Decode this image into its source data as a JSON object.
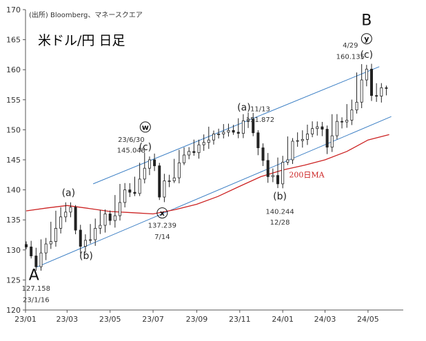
{
  "source_note": "(出所) Bloomberg、マネースクエア",
  "title": "米ドル/円 日足",
  "chart_data": {
    "type": "line",
    "title": "米ドル/円 日足",
    "ylim": [
      120,
      170
    ],
    "y_ticks": [
      "120",
      "125",
      "130",
      "135",
      "140",
      "145",
      "150",
      "155",
      "160",
      "165",
      "170"
    ],
    "x_ticks": [
      "23/01",
      "23/03",
      "23/05",
      "23/07",
      "23/09",
      "23/11",
      "24/01",
      "24/03",
      "24/05"
    ],
    "series": [
      {
        "name": "",
        "style": "candlestick",
        "values": [
          [
            "2023-01-02",
            130.5
          ],
          [
            "2023-01-09",
            129.0
          ],
          [
            "2023-01-16",
            127.2
          ],
          [
            "2023-01-23",
            129.5
          ],
          [
            "2023-01-30",
            131.0
          ],
          [
            "2023-02-06",
            131.4
          ],
          [
            "2023-02-13",
            133.6
          ],
          [
            "2023-02-20",
            135.5
          ],
          [
            "2023-02-27",
            136.3
          ],
          [
            "2023-03-06",
            137.1
          ],
          [
            "2023-03-13",
            133.3
          ],
          [
            "2023-03-20",
            130.6
          ],
          [
            "2023-03-27",
            131.6
          ],
          [
            "2023-04-03",
            131.7
          ],
          [
            "2023-04-10",
            133.6
          ],
          [
            "2023-04-17",
            134.1
          ],
          [
            "2023-04-24",
            136.0
          ],
          [
            "2023-05-01",
            134.9
          ],
          [
            "2023-05-08",
            135.7
          ],
          [
            "2023-05-15",
            137.9
          ],
          [
            "2023-05-22",
            140.0
          ],
          [
            "2023-05-29",
            139.6
          ],
          [
            "2023-06-05",
            139.4
          ],
          [
            "2023-06-12",
            141.8
          ],
          [
            "2023-06-19",
            143.6
          ],
          [
            "2023-06-26",
            145.0
          ],
          [
            "2023-07-03",
            144.0
          ],
          [
            "2023-07-10",
            138.8
          ],
          [
            "2023-07-17",
            141.5
          ],
          [
            "2023-07-24",
            141.5
          ],
          [
            "2023-07-31",
            142.0
          ],
          [
            "2023-08-07",
            144.5
          ],
          [
            "2023-08-14",
            145.8
          ],
          [
            "2023-08-21",
            146.4
          ],
          [
            "2023-08-28",
            146.2
          ],
          [
            "2023-09-04",
            147.5
          ],
          [
            "2023-09-11",
            147.9
          ],
          [
            "2023-09-18",
            148.3
          ],
          [
            "2023-09-25",
            149.3
          ],
          [
            "2023-10-02",
            149.3
          ],
          [
            "2023-10-09",
            149.6
          ],
          [
            "2023-10-16",
            149.9
          ],
          [
            "2023-10-23",
            149.6
          ],
          [
            "2023-10-30",
            149.4
          ],
          [
            "2023-11-06",
            151.5
          ],
          [
            "2023-11-13",
            151.8
          ],
          [
            "2023-11-20",
            149.5
          ],
          [
            "2023-11-27",
            147.0
          ],
          [
            "2023-12-04",
            144.9
          ],
          [
            "2023-12-11",
            142.2
          ],
          [
            "2023-12-18",
            142.4
          ],
          [
            "2023-12-25",
            141.0
          ],
          [
            "2024-01-01",
            144.6
          ],
          [
            "2024-01-08",
            145.0
          ],
          [
            "2024-01-15",
            148.1
          ],
          [
            "2024-01-22",
            148.2
          ],
          [
            "2024-01-29",
            148.4
          ],
          [
            "2024-02-05",
            149.3
          ],
          [
            "2024-02-12",
            150.2
          ],
          [
            "2024-02-19",
            150.5
          ],
          [
            "2024-02-26",
            150.1
          ],
          [
            "2024-03-04",
            147.1
          ],
          [
            "2024-03-11",
            149.0
          ],
          [
            "2024-03-18",
            151.4
          ],
          [
            "2024-03-25",
            151.3
          ],
          [
            "2024-04-01",
            151.6
          ],
          [
            "2024-04-08",
            153.3
          ],
          [
            "2024-04-15",
            154.6
          ],
          [
            "2024-04-22",
            158.3
          ],
          [
            "2024-04-29",
            160.1
          ],
          [
            "2024-05-06",
            155.7
          ],
          [
            "2024-05-13",
            155.6
          ],
          [
            "2024-05-20",
            157.0
          ],
          [
            "2024-05-27",
            156.9
          ]
        ]
      },
      {
        "name": "200日MA",
        "color": "#cc2222",
        "values": [
          [
            "2023-01-02",
            136.5
          ],
          [
            "2023-02-01",
            137.0
          ],
          [
            "2023-03-01",
            137.4
          ],
          [
            "2023-04-01",
            136.9
          ],
          [
            "2023-05-01",
            136.4
          ],
          [
            "2023-06-01",
            136.2
          ],
          [
            "2023-07-01",
            136.0
          ],
          [
            "2023-08-01",
            136.7
          ],
          [
            "2023-09-01",
            137.6
          ],
          [
            "2023-10-01",
            138.9
          ],
          [
            "2023-11-01",
            140.6
          ],
          [
            "2023-12-01",
            142.2
          ],
          [
            "2024-01-01",
            143.3
          ],
          [
            "2024-02-01",
            144.1
          ],
          [
            "2024-03-01",
            145.0
          ],
          [
            "2024-04-01",
            146.4
          ],
          [
            "2024-05-01",
            148.3
          ],
          [
            "2024-05-31",
            149.2
          ]
        ]
      }
    ],
    "trend_lines": [
      {
        "from": [
          "2023-04-07",
          141.0
        ],
        "to": [
          "2024-05-17",
          160.5
        ]
      },
      {
        "from": [
          "2023-01-16",
          127.1
        ],
        "to": [
          "2024-06-03",
          152.2
        ]
      }
    ],
    "annotations": [
      {
        "text": "(a)",
        "at": [
          "2023-03-03",
          139.0
        ],
        "style": "wave"
      },
      {
        "text": "(b)",
        "at": [
          "2023-03-28",
          128.5
        ],
        "style": "wave"
      },
      {
        "text": "(c)",
        "at": [
          "2023-06-20",
          146.6
        ],
        "style": "wave"
      },
      {
        "text": "w",
        "at": [
          "2023-06-20",
          150.0
        ],
        "style": "circle"
      },
      {
        "text": "23/6/30",
        "at": [
          "2023-05-31",
          148.0
        ],
        "style": "small"
      },
      {
        "text": "145.048",
        "at": [
          "2023-05-31",
          146.2
        ],
        "style": "small"
      },
      {
        "text": "x",
        "at": [
          "2023-07-14",
          135.7
        ],
        "style": "circle"
      },
      {
        "text": "137.239",
        "at": [
          "2023-07-14",
          133.7
        ],
        "style": "small"
      },
      {
        "text": "7/14",
        "at": [
          "2023-07-14",
          131.8
        ],
        "style": "small"
      },
      {
        "text": "(a)",
        "at": [
          "2023-11-07",
          153.2
        ],
        "style": "wave"
      },
      {
        "text": "11/13",
        "at": [
          "2023-11-30",
          153.1
        ],
        "style": "small"
      },
      {
        "text": "151.872",
        "at": [
          "2023-11-30",
          151.3
        ],
        "style": "small"
      },
      {
        "text": "(b)",
        "at": [
          "2023-12-28",
          138.4
        ],
        "style": "wave"
      },
      {
        "text": "140.244",
        "at": [
          "2023-12-28",
          136.0
        ],
        "style": "small"
      },
      {
        "text": "12/28",
        "at": [
          "2023-12-28",
          134.2
        ],
        "style": "small"
      },
      {
        "text": "200日MA",
        "at": [
          "2024-01-10",
          142.1
        ],
        "style": "ma"
      },
      {
        "text": "(c)",
        "at": [
          "2024-04-29",
          162.0
        ],
        "style": "wave"
      },
      {
        "text": "y",
        "at": [
          "2024-04-29",
          164.7
        ],
        "style": "circle"
      },
      {
        "text": "4/29",
        "at": [
          "2024-04-06",
          163.7
        ],
        "style": "small"
      },
      {
        "text": "160.135",
        "at": [
          "2024-04-06",
          161.8
        ],
        "style": "small"
      },
      {
        "text": "B",
        "at": [
          "2024-04-29",
          167.4
        ],
        "style": "big"
      },
      {
        "text": "A",
        "at": [
          "2023-01-13",
          125.0
        ],
        "style": "big"
      },
      {
        "text": "127.158",
        "at": [
          "2023-01-16",
          123.2
        ],
        "style": "small"
      },
      {
        "text": "23/1/16",
        "at": [
          "2023-01-16",
          121.3
        ],
        "style": "small"
      }
    ]
  },
  "colors": {
    "axis": "#555555",
    "candle": "#222222",
    "ma": "#cc2222",
    "trend": "#3a7ec4"
  }
}
